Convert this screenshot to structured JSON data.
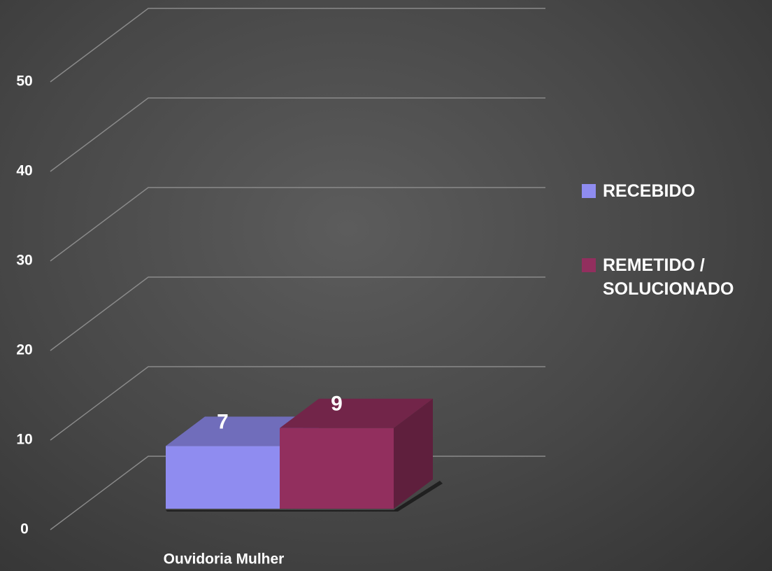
{
  "chart_data": {
    "type": "bar3d",
    "categories": [
      "Ouvidoria Mulher"
    ],
    "series": [
      {
        "name": "RECEBIDO",
        "color": "#8f8cf0",
        "values": [
          7
        ]
      },
      {
        "name": "REMETIDO / SOLUCIONADO",
        "color": "#922f5e",
        "values": [
          9
        ]
      }
    ],
    "ylim": [
      0,
      50
    ],
    "yticks": [
      0,
      10,
      20,
      30,
      40,
      50
    ],
    "grid": true,
    "legend": "right"
  }
}
